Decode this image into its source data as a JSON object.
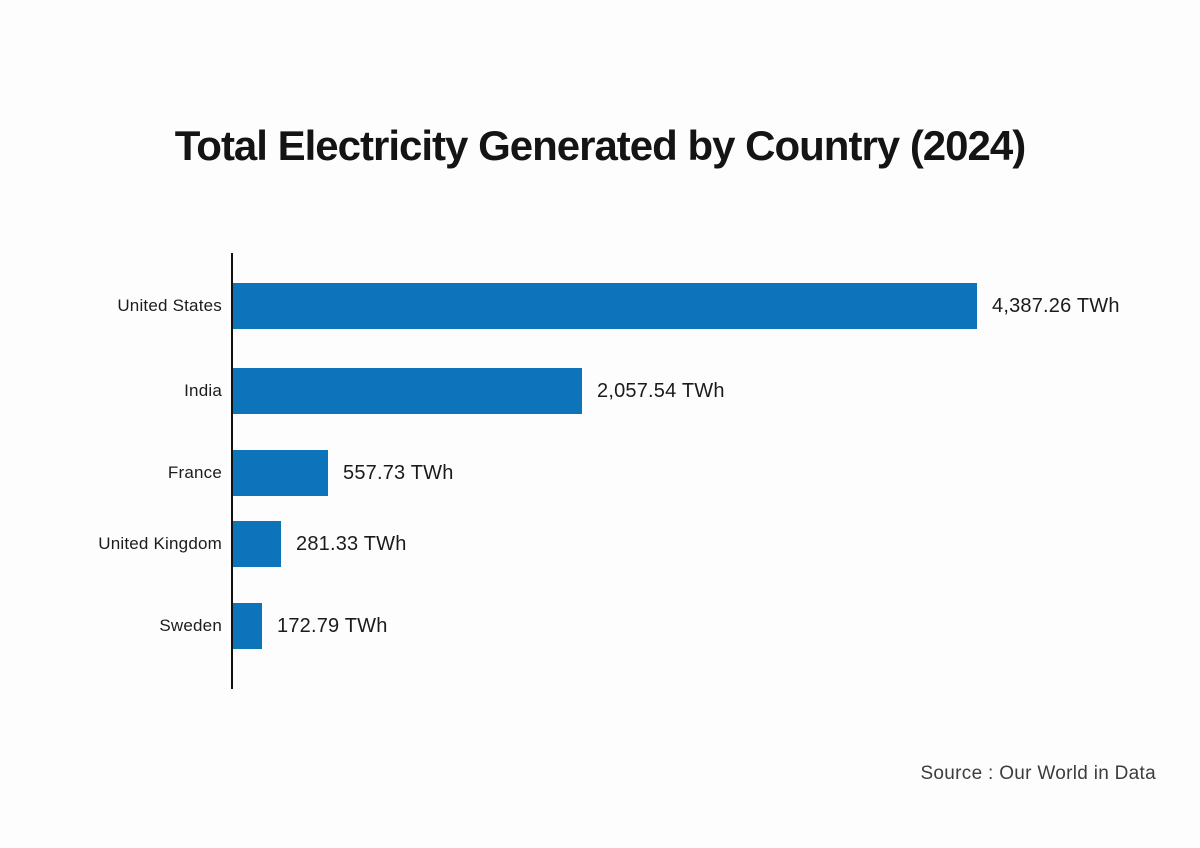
{
  "chart_data": {
    "type": "bar",
    "orientation": "horizontal",
    "title": "Total Electricity Generated by Country (2024)",
    "categories": [
      "United States",
      "India",
      "France",
      "United Kingdom",
      "Sweden"
    ],
    "values": [
      4387.26,
      2057.54,
      557.73,
      281.33,
      172.79
    ],
    "value_labels": [
      "4,387.26 TWh",
      "2,057.54 TWh",
      "557.73 TWh",
      "281.33 TWh",
      "172.79 TWh"
    ],
    "unit": "TWh",
    "xlim": [
      0,
      4387.26
    ],
    "grid": false,
    "legend": false,
    "bar_color": "#0d74bc",
    "axis_color": "#111111",
    "background_color": "#fdfdfd",
    "source": "Source : Our World in Data"
  }
}
